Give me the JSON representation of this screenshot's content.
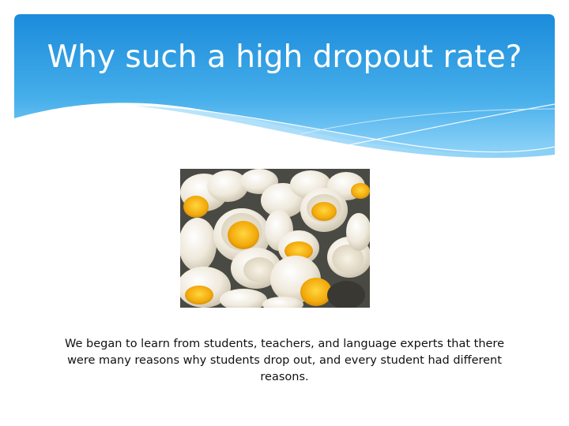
{
  "slide": {
    "title": "Why such a high dropout rate?",
    "body": "We began to learn from students, teachers, and language experts that there were many reasons why students drop out, and every student had different reasons."
  },
  "image": {
    "subject": "broken-egg-shells"
  },
  "colors": {
    "header_top": "#1e8fdc",
    "header_bottom": "#6cc4f3",
    "title_text": "#ffffff",
    "body_text": "#111111",
    "egg_shell": "#f1ecdf",
    "yolk": "#f5b70d"
  }
}
